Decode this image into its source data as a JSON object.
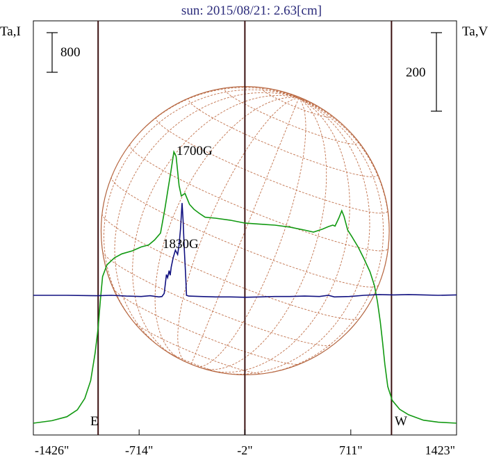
{
  "chart_data": {
    "type": "line",
    "title": "sun: 2015/08/21: 2.63[cm]",
    "ylabel_left": "Ta,I",
    "ylabel_right": "Ta,V",
    "xticks": [
      "-1426\"",
      "-714\"",
      "-2\"",
      "711\"",
      "1423\""
    ],
    "xtick_values": [
      -1426,
      -714,
      -2,
      711,
      1423
    ],
    "xlim": [
      -1426,
      1423
    ],
    "limb_labels": {
      "east": "E",
      "west": "W"
    },
    "limb_positions": [
      -990,
      985
    ],
    "center_line": -2,
    "scale_bars": {
      "left": {
        "label": "800",
        "value": 800
      },
      "right": {
        "label": "200",
        "value": 200
      }
    },
    "annotations": [
      {
        "text": "1700G",
        "x": -420,
        "y_v": 210
      },
      {
        "text": "1830G",
        "x": -500,
        "y_v": 90
      }
    ],
    "series": [
      {
        "name": "Ta,I",
        "color": "#119911",
        "axis": "left",
        "points": [
          [
            -1426,
            0
          ],
          [
            -1300,
            50
          ],
          [
            -1200,
            130
          ],
          [
            -1130,
            270
          ],
          [
            -1080,
            500
          ],
          [
            -1040,
            860
          ],
          [
            -1010,
            1420
          ],
          [
            -990,
            1920
          ],
          [
            -975,
            2480
          ],
          [
            -960,
            2960
          ],
          [
            -930,
            3200
          ],
          [
            -880,
            3340
          ],
          [
            -830,
            3420
          ],
          [
            -760,
            3480
          ],
          [
            -700,
            3560
          ],
          [
            -650,
            3600
          ],
          [
            -610,
            3700
          ],
          [
            -570,
            3840
          ],
          [
            -540,
            4340
          ],
          [
            -520,
            4720
          ],
          [
            -500,
            5080
          ],
          [
            -480,
            5480
          ],
          [
            -465,
            5390
          ],
          [
            -445,
            4800
          ],
          [
            -430,
            4590
          ],
          [
            -405,
            4640
          ],
          [
            -375,
            4420
          ],
          [
            -345,
            4320
          ],
          [
            -310,
            4240
          ],
          [
            -270,
            4160
          ],
          [
            -200,
            4140
          ],
          [
            -100,
            4100
          ],
          [
            0,
            4040
          ],
          [
            100,
            4020
          ],
          [
            200,
            4000
          ],
          [
            300,
            3960
          ],
          [
            400,
            3900
          ],
          [
            460,
            3860
          ],
          [
            520,
            3920
          ],
          [
            560,
            3970
          ],
          [
            590,
            4000
          ],
          [
            605,
            3980
          ],
          [
            630,
            4140
          ],
          [
            650,
            4290
          ],
          [
            665,
            4180
          ],
          [
            690,
            3900
          ],
          [
            720,
            3760
          ],
          [
            760,
            3560
          ],
          [
            800,
            3320
          ],
          [
            840,
            3060
          ],
          [
            870,
            2780
          ],
          [
            890,
            2460
          ],
          [
            910,
            2040
          ],
          [
            925,
            1640
          ],
          [
            940,
            1190
          ],
          [
            960,
            740
          ],
          [
            990,
            460
          ],
          [
            1040,
            280
          ],
          [
            1100,
            170
          ],
          [
            1200,
            60
          ],
          [
            1300,
            20
          ],
          [
            1423,
            0
          ]
        ]
      },
      {
        "name": "Ta,V",
        "color": "#101080",
        "axis": "right",
        "points": [
          [
            -1426,
            0
          ],
          [
            -1200,
            0
          ],
          [
            -1000,
            -1
          ],
          [
            -900,
            0
          ],
          [
            -800,
            -2
          ],
          [
            -700,
            -3
          ],
          [
            -640,
            -1
          ],
          [
            -580,
            -4
          ],
          [
            -560,
            -3
          ],
          [
            -545,
            5
          ],
          [
            -530,
            53
          ],
          [
            -522,
            45
          ],
          [
            -512,
            63
          ],
          [
            -505,
            51
          ],
          [
            -498,
            72
          ],
          [
            -485,
            95
          ],
          [
            -470,
            115
          ],
          [
            -455,
            104
          ],
          [
            -445,
            128
          ],
          [
            -435,
            170
          ],
          [
            -425,
            235
          ],
          [
            -418,
            190
          ],
          [
            -410,
            118
          ],
          [
            -400,
            45
          ],
          [
            -395,
            0
          ],
          [
            -380,
            -2
          ],
          [
            -300,
            -3
          ],
          [
            -200,
            -4
          ],
          [
            -100,
            -4
          ],
          [
            0,
            -5
          ],
          [
            100,
            -4
          ],
          [
            200,
            -3
          ],
          [
            300,
            -3
          ],
          [
            400,
            -2
          ],
          [
            500,
            -3
          ],
          [
            560,
            0
          ],
          [
            600,
            -4
          ],
          [
            700,
            -3
          ],
          [
            800,
            0
          ],
          [
            900,
            2
          ],
          [
            1000,
            1
          ],
          [
            1100,
            2
          ],
          [
            1200,
            1
          ],
          [
            1300,
            0
          ],
          [
            1423,
            1
          ]
        ]
      }
    ],
    "solar_disk": {
      "radius_arcsec": 970,
      "grid": true
    }
  }
}
